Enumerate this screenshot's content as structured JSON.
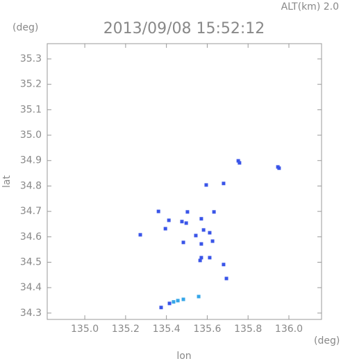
{
  "chart_data": {
    "type": "scatter",
    "title": "2013/09/08 15:52:12",
    "subtitle": "ALT(km) 2.0",
    "x_label": "lon",
    "y_label": "lat",
    "x_unit": "(deg)",
    "y_unit": "(deg)",
    "xlim": [
      134.816,
      136.16
    ],
    "ylim": [
      34.275,
      35.36
    ],
    "xticks": [
      {
        "value": 135,
        "label": "135.0"
      },
      135.2,
      135.4,
      135.6,
      135.8,
      {
        "value": 136,
        "label": "136.0"
      }
    ],
    "yticks": [
      34.3,
      34.4,
      34.5,
      34.6,
      34.7,
      34.8,
      34.9,
      {
        "value": 35,
        "label": "35.0"
      },
      35.1,
      35.2,
      35.3
    ],
    "series": [
      {
        "color": "#3a55e8",
        "x": [
          135.752,
          135.758,
          135.946,
          135.952,
          135.595,
          135.68,
          135.361,
          135.503,
          135.633,
          135.412,
          135.476,
          135.497,
          135.571,
          135.395,
          135.582,
          135.272,
          135.544,
          135.612,
          135.483,
          135.571,
          135.626,
          135.571,
          135.612,
          135.565,
          135.68,
          135.694,
          135.374,
          135.415
        ],
        "values": [
          34.899,
          34.891,
          34.875,
          34.87,
          34.804,
          34.81,
          34.7,
          34.698,
          34.698,
          34.665,
          34.66,
          34.654,
          34.671,
          34.632,
          34.627,
          34.608,
          34.605,
          34.616,
          34.578,
          34.572,
          34.583,
          34.518,
          34.518,
          34.507,
          34.491,
          34.436,
          34.322,
          34.338
        ]
      },
      {
        "color": "#35a6e8",
        "x": [
          135.435,
          135.456,
          135.483,
          135.558
        ],
        "values": [
          34.344,
          34.349,
          34.354,
          34.365
        ]
      }
    ]
  }
}
